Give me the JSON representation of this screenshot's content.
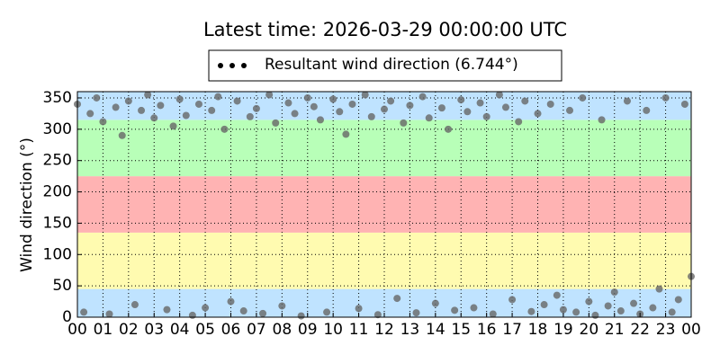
{
  "chart_data": {
    "type": "scatter",
    "title": "Latest time: 2026-03-29 00:00:00 UTC",
    "y_label": "Wind direction (°)",
    "x": [
      0,
      0.25,
      0.5,
      0.75,
      1,
      1.25,
      1.5,
      1.75,
      2,
      2.25,
      2.5,
      2.75,
      3,
      3.25,
      3.5,
      3.75,
      4,
      4.25,
      4.5,
      4.75,
      5,
      5.25,
      5.5,
      5.75,
      6,
      6.25,
      6.5,
      6.75,
      7,
      7.25,
      7.5,
      7.75,
      8,
      8.25,
      8.5,
      8.75,
      9,
      9.25,
      9.5,
      9.75,
      10,
      10.25,
      10.5,
      10.75,
      11,
      11.25,
      11.5,
      11.75,
      12,
      12.25,
      12.5,
      12.75,
      13,
      13.25,
      13.5,
      13.75,
      14,
      14.25,
      14.5,
      14.75,
      15,
      15.25,
      15.5,
      15.75,
      16,
      16.25,
      16.5,
      16.75,
      17,
      17.25,
      17.5,
      17.75,
      18,
      18.25,
      18.5,
      18.75,
      19,
      19.25,
      19.5,
      19.75,
      20,
      20.25,
      20.5,
      20.75,
      21,
      21.25,
      21.5,
      21.75,
      22,
      22.25,
      22.5,
      22.75,
      23,
      23.25,
      23.5,
      23.75,
      24
    ],
    "series": [
      {
        "name": "Resultant wind direction (6.744°)",
        "color": "#666666",
        "values": [
          340,
          8,
          325,
          350,
          312,
          5,
          335,
          290,
          345,
          20,
          330,
          355,
          318,
          338,
          12,
          305,
          348,
          322,
          3,
          340,
          15,
          330,
          352,
          300,
          25,
          345,
          10,
          320,
          333,
          6,
          355,
          310,
          18,
          342,
          325,
          2,
          350,
          336,
          315,
          8,
          348,
          328,
          292,
          340,
          14,
          355,
          320,
          4,
          332,
          345,
          30,
          310,
          338,
          7,
          352,
          318,
          22,
          334,
          300,
          11,
          347,
          328,
          15,
          342,
          320,
          5,
          355,
          335,
          28,
          312,
          345,
          9,
          325,
          20,
          340,
          35,
          12,
          330,
          8,
          350,
          25,
          3,
          315,
          18,
          40,
          10,
          345,
          22,
          5,
          330,
          15,
          45,
          350,
          8,
          28,
          340,
          65
        ]
      }
    ],
    "xlim": [
      0,
      24
    ],
    "xticks": [
      {
        "value": 0,
        "label": "00"
      },
      {
        "value": 1,
        "label": "01"
      },
      {
        "value": 2,
        "label": "02"
      },
      {
        "value": 3,
        "label": "03"
      },
      {
        "value": 4,
        "label": "04"
      },
      {
        "value": 5,
        "label": "05"
      },
      {
        "value": 6,
        "label": "06"
      },
      {
        "value": 7,
        "label": "07"
      },
      {
        "value": 8,
        "label": "08"
      },
      {
        "value": 9,
        "label": "09"
      },
      10,
      11,
      12,
      13,
      14,
      15,
      16,
      17,
      18,
      19,
      20,
      21,
      22,
      23,
      {
        "value": 24,
        "label": "00"
      }
    ],
    "ylim": [
      0,
      360
    ],
    "yticks": [
      0,
      50,
      100,
      150,
      200,
      250,
      300,
      350
    ],
    "grid": true,
    "bands": [
      {
        "from": 0,
        "to": 45,
        "color": "#bfe3ff"
      },
      {
        "from": 45,
        "to": 135,
        "color": "#fffbb0"
      },
      {
        "from": 135,
        "to": 225,
        "color": "#ffb3b3"
      },
      {
        "from": 225,
        "to": 315,
        "color": "#b8ffb8"
      },
      {
        "from": 315,
        "to": 360,
        "color": "#bfe3ff"
      }
    ]
  }
}
